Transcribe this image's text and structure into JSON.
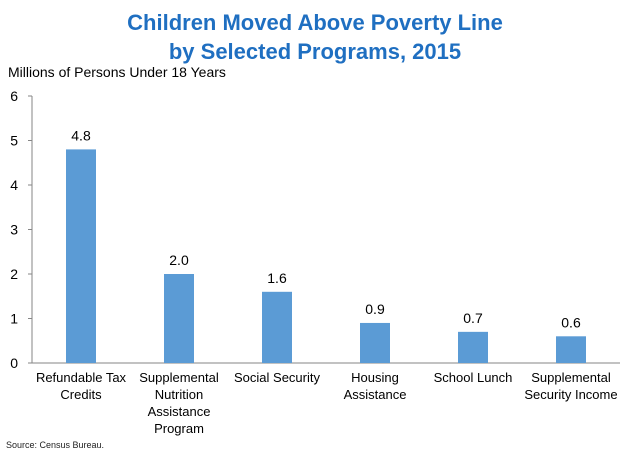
{
  "chart_data": {
    "type": "bar",
    "title_line1": "Children Moved Above Poverty Line",
    "title_line2": "by Selected Programs, 2015",
    "ylabel": "Millions of Persons Under 18 Years",
    "xlabel": "",
    "ylim": [
      0,
      6
    ],
    "yticks": [
      "0",
      "1",
      "2",
      "3",
      "4",
      "5",
      "6"
    ],
    "categories": [
      [
        "Refundable Tax",
        "Credits"
      ],
      [
        "Supplemental",
        "Nutrition",
        "Assistance",
        "Program"
      ],
      [
        "Social Security"
      ],
      [
        "Housing",
        "Assistance"
      ],
      [
        "School Lunch"
      ],
      [
        "Supplemental",
        "Security Income"
      ]
    ],
    "values": [
      4.8,
      2.0,
      1.6,
      0.9,
      0.7,
      0.6
    ],
    "value_labels": [
      "4.8",
      "2.0",
      "1.6",
      "0.9",
      "0.7",
      "0.6"
    ],
    "grid": false,
    "legend": "none",
    "bar_color": "#5b9bd5"
  },
  "source": "Source: Census Bureau."
}
